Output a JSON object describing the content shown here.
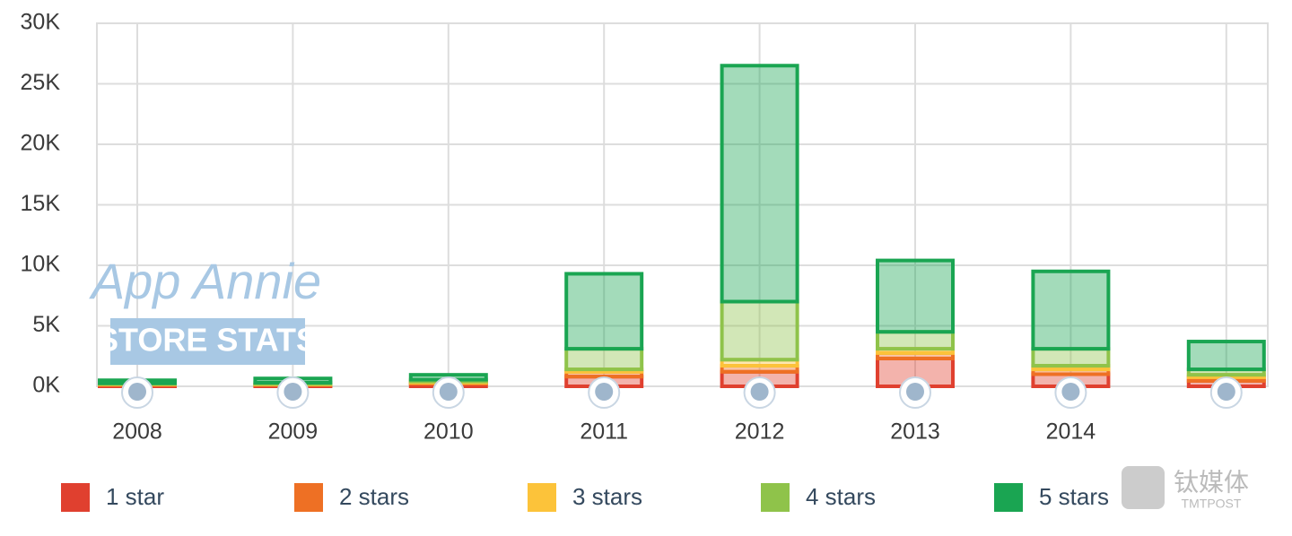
{
  "chart_data": {
    "type": "stacked_bar",
    "categories": [
      "2008",
      "2009",
      "2010",
      "2011",
      "2012",
      "2013",
      "2014",
      null
    ],
    "series": [
      {
        "name": "1 star",
        "color": "#e0402f",
        "values": [
          100,
          100,
          200,
          800,
          1200,
          2300,
          1000,
          450
        ]
      },
      {
        "name": "2 stars",
        "color": "#ee7024",
        "values": [
          50,
          50,
          100,
          400,
          500,
          450,
          400,
          300
        ]
      },
      {
        "name": "3 stars",
        "color": "#fcc33a",
        "values": [
          50,
          50,
          100,
          200,
          500,
          350,
          300,
          200
        ]
      },
      {
        "name": "4 stars",
        "color": "#8fc34a",
        "values": [
          50,
          100,
          150,
          1700,
          4800,
          1400,
          1400,
          450
        ]
      },
      {
        "name": "5 stars",
        "color": "#1aa552",
        "values": [
          250,
          350,
          400,
          6200,
          19500,
          5900,
          6400,
          2300
        ]
      }
    ],
    "ylim": [
      0,
      30000
    ],
    "yticks": [
      {
        "value": 0,
        "label": "0K"
      },
      {
        "value": 5000,
        "label": "5K"
      },
      {
        "value": 10000,
        "label": "10K"
      },
      {
        "value": 15000,
        "label": "15K"
      },
      {
        "value": 20000,
        "label": "20K"
      },
      {
        "value": 25000,
        "label": "25K"
      },
      {
        "value": 30000,
        "label": "30K"
      }
    ],
    "grid": true
  },
  "watermarks": [
    "App Annie",
    "STORE STATS",
    "钛媒体",
    "TMTPOST"
  ]
}
